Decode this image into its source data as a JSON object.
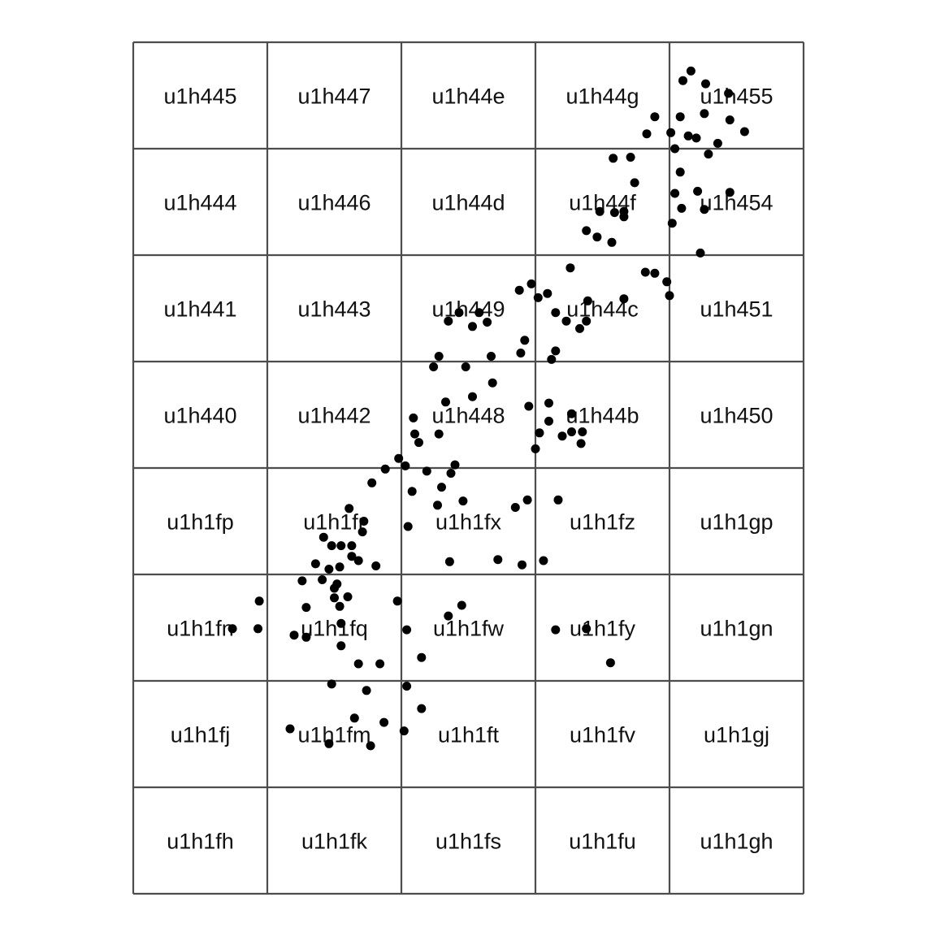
{
  "grid": {
    "columns": 5,
    "rows": 8,
    "cells": [
      [
        "u1h445",
        "u1h447",
        "u1h44e",
        "u1h44g",
        "u1h455"
      ],
      [
        "u1h444",
        "u1h446",
        "u1h44d",
        "u1h44f",
        "u1h454"
      ],
      [
        "u1h441",
        "u1h443",
        "u1h449",
        "u1h44c",
        "u1h451"
      ],
      [
        "u1h440",
        "u1h442",
        "u1h448",
        "u1h44b",
        "u1h450"
      ],
      [
        "u1h1fp",
        "u1h1fr",
        "u1h1fx",
        "u1h1fz",
        "u1h1gp"
      ],
      [
        "u1h1fn",
        "u1h1fq",
        "u1h1fw",
        "u1h1fy",
        "u1h1gn"
      ],
      [
        "u1h1fj",
        "u1h1fm",
        "u1h1ft",
        "u1h1fv",
        "u1h1gj"
      ],
      [
        "u1h1fh",
        "u1h1fk",
        "u1h1fs",
        "u1h1fu",
        "u1h1gh"
      ]
    ]
  },
  "colors": {
    "grid_line": "#4d4d4d",
    "point": "#000000",
    "background": "#ffffff"
  },
  "points": [
    [
      4.16,
      0.27
    ],
    [
      4.1,
      0.36
    ],
    [
      4.27,
      0.39
    ],
    [
      4.44,
      0.48
    ],
    [
      3.89,
      0.7
    ],
    [
      4.08,
      0.7
    ],
    [
      4.26,
      0.67
    ],
    [
      4.45,
      0.73
    ],
    [
      3.83,
      0.86
    ],
    [
      4.01,
      0.85
    ],
    [
      4.14,
      0.88
    ],
    [
      4.2,
      0.9
    ],
    [
      4.56,
      0.84
    ],
    [
      4.04,
      1.0
    ],
    [
      4.36,
      0.95
    ],
    [
      4.29,
      1.05
    ],
    [
      3.58,
      1.09
    ],
    [
      3.71,
      1.08
    ],
    [
      4.08,
      1.22
    ],
    [
      3.74,
      1.32
    ],
    [
      4.04,
      1.42
    ],
    [
      4.21,
      1.4
    ],
    [
      4.09,
      1.56
    ],
    [
      4.45,
      1.41
    ],
    [
      4.26,
      1.57
    ],
    [
      3.48,
      1.59
    ],
    [
      3.59,
      1.6
    ],
    [
      3.66,
      1.59
    ],
    [
      3.66,
      1.64
    ],
    [
      4.02,
      1.7
    ],
    [
      3.38,
      1.77
    ],
    [
      3.46,
      1.83
    ],
    [
      3.57,
      1.88
    ],
    [
      4.23,
      1.98
    ],
    [
      3.26,
      2.12
    ],
    [
      3.82,
      2.16
    ],
    [
      3.89,
      2.17
    ],
    [
      3.98,
      2.25
    ],
    [
      4.0,
      2.38
    ],
    [
      3.66,
      2.41
    ],
    [
      3.39,
      2.43
    ],
    [
      2.88,
      2.33
    ],
    [
      2.97,
      2.27
    ],
    [
      3.09,
      2.36
    ],
    [
      3.02,
      2.4
    ],
    [
      2.43,
      2.54
    ],
    [
      2.58,
      2.54
    ],
    [
      3.15,
      2.54
    ],
    [
      3.23,
      2.62
    ],
    [
      2.35,
      2.62
    ],
    [
      2.53,
      2.67
    ],
    [
      2.64,
      2.63
    ],
    [
      3.38,
      2.62
    ],
    [
      3.33,
      2.69
    ],
    [
      2.92,
      2.8
    ],
    [
      3.15,
      2.9
    ],
    [
      2.67,
      2.95
    ],
    [
      3.12,
      2.98
    ],
    [
      2.89,
      2.92
    ],
    [
      2.24,
      3.05
    ],
    [
      2.48,
      3.05
    ],
    [
      2.28,
      2.95
    ],
    [
      2.68,
      3.2
    ],
    [
      2.33,
      3.38
    ],
    [
      2.53,
      3.33
    ],
    [
      3.1,
      3.39
    ],
    [
      3.27,
      3.49
    ],
    [
      2.95,
      3.42
    ],
    [
      3.1,
      3.56
    ],
    [
      3.27,
      3.66
    ],
    [
      2.09,
      3.53
    ],
    [
      2.28,
      3.68
    ],
    [
      3.03,
      3.67
    ],
    [
      3.2,
      3.7
    ],
    [
      3.35,
      3.66
    ],
    [
      2.1,
      3.68
    ],
    [
      2.13,
      3.76
    ],
    [
      1.98,
      3.91
    ],
    [
      3.0,
      3.82
    ],
    [
      3.34,
      3.77
    ],
    [
      2.03,
      3.98
    ],
    [
      2.4,
      3.97
    ],
    [
      1.88,
      4.01
    ],
    [
      2.19,
      4.03
    ],
    [
      2.37,
      4.05
    ],
    [
      2.3,
      4.18
    ],
    [
      1.78,
      4.14
    ],
    [
      2.08,
      4.22
    ],
    [
      2.27,
      4.35
    ],
    [
      2.46,
      4.31
    ],
    [
      1.61,
      4.38
    ],
    [
      2.94,
      4.3
    ],
    [
      3.17,
      4.3
    ],
    [
      2.85,
      4.37
    ],
    [
      1.72,
      4.5
    ],
    [
      1.71,
      4.6
    ],
    [
      2.05,
      4.55
    ],
    [
      1.42,
      4.65
    ],
    [
      1.48,
      4.73
    ],
    [
      1.55,
      4.73
    ],
    [
      1.63,
      4.73
    ],
    [
      1.63,
      4.83
    ],
    [
      1.36,
      4.9
    ],
    [
      1.46,
      4.95
    ],
    [
      1.54,
      4.93
    ],
    [
      1.68,
      4.87
    ],
    [
      1.81,
      4.92
    ],
    [
      2.36,
      4.88
    ],
    [
      2.72,
      4.86
    ],
    [
      2.9,
      4.91
    ],
    [
      3.06,
      4.87
    ],
    [
      1.41,
      5.05
    ],
    [
      1.26,
      5.06
    ],
    [
      1.52,
      5.09
    ],
    [
      1.5,
      5.13
    ],
    [
      1.5,
      5.22
    ],
    [
      1.6,
      5.21
    ],
    [
      1.54,
      5.3
    ],
    [
      0.94,
      5.25
    ],
    [
      1.29,
      5.31
    ],
    [
      1.97,
      5.25
    ],
    [
      2.45,
      5.29
    ],
    [
      1.55,
      5.46
    ],
    [
      0.93,
      5.51
    ],
    [
      2.04,
      5.52
    ],
    [
      2.35,
      5.39
    ],
    [
      3.15,
      5.52
    ],
    [
      3.38,
      5.51
    ],
    [
      0.74,
      5.51
    ],
    [
      1.2,
      5.57
    ],
    [
      1.29,
      5.59
    ],
    [
      1.55,
      5.67
    ],
    [
      2.15,
      5.78
    ],
    [
      1.68,
      5.84
    ],
    [
      1.84,
      5.84
    ],
    [
      3.56,
      5.83
    ],
    [
      1.48,
      6.03
    ],
    [
      1.74,
      6.09
    ],
    [
      2.04,
      6.05
    ],
    [
      1.65,
      6.35
    ],
    [
      1.87,
      6.39
    ],
    [
      2.15,
      6.26
    ],
    [
      1.17,
      6.45
    ],
    [
      1.46,
      6.59
    ],
    [
      1.77,
      6.61
    ],
    [
      2.02,
      6.47
    ]
  ]
}
